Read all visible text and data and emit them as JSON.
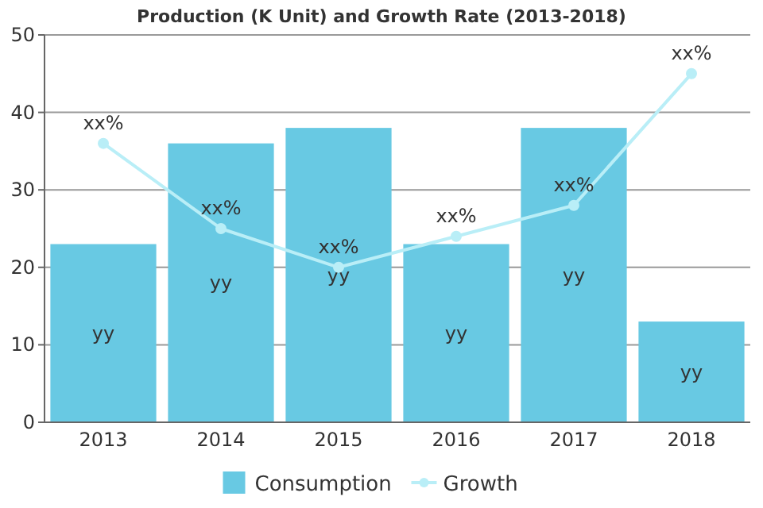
{
  "chart_data": {
    "type": "bar",
    "title": "Production (K Unit) and Growth Rate (2013-2018)",
    "categories": [
      "2013",
      "2014",
      "2015",
      "2016",
      "2017",
      "2018"
    ],
    "series": [
      {
        "name": "Consumption",
        "color": "#68c9e3",
        "values": [
          23,
          36,
          38,
          23,
          38,
          13
        ],
        "value_labels": [
          "yy",
          "yy",
          "yy",
          "yy",
          "yy",
          "yy"
        ]
      },
      {
        "name": "Growth",
        "type": "line",
        "color": "#b9eef7",
        "values": [
          36,
          25,
          20,
          24,
          28,
          45
        ],
        "value_labels": [
          "xx%",
          "xx%",
          "xx%",
          "xx%",
          "xx%",
          "xx%"
        ],
        "marker": "circle"
      }
    ],
    "ylim": [
      0,
      50
    ],
    "yticks": [
      0,
      10,
      20,
      30,
      40,
      50
    ],
    "grid": "y",
    "legend": "bottom"
  }
}
